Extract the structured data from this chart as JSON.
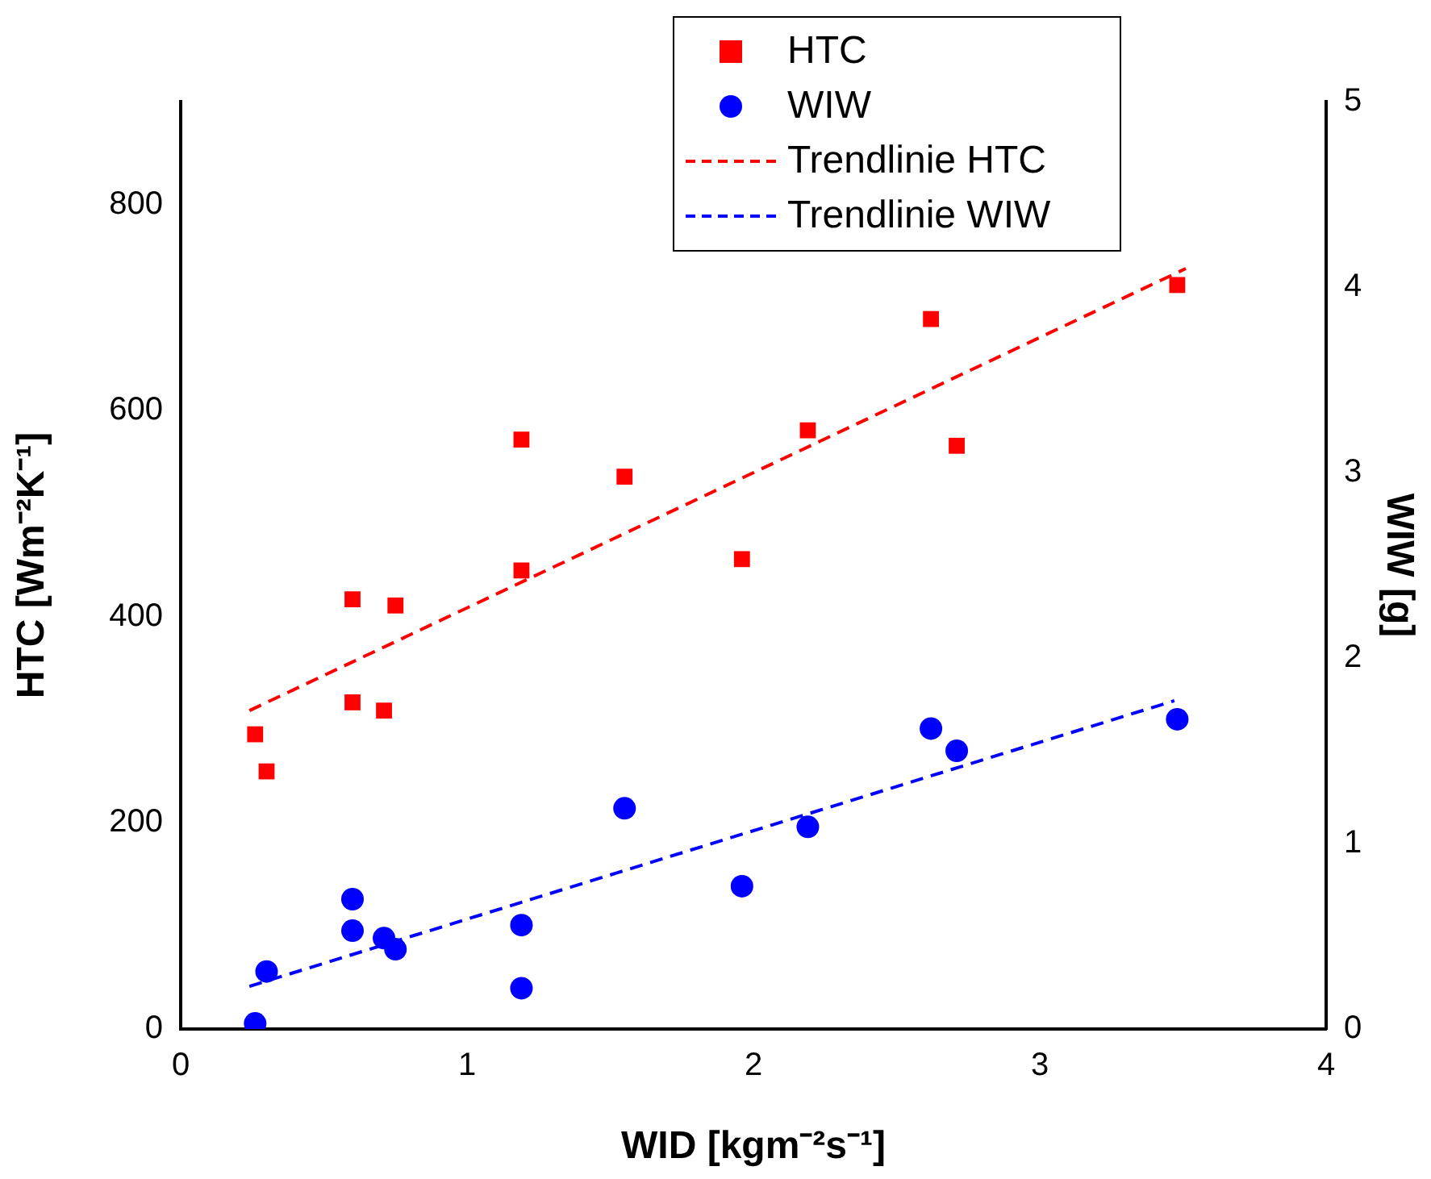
{
  "chart_data": {
    "type": "scatter",
    "xlabel": "WID [kgm⁻²s⁻¹]",
    "ylabel": "HTC [Wm⁻²K⁻¹]",
    "y2label": "WIW [g]",
    "xlim": [
      0,
      4
    ],
    "xticks": [
      0,
      1,
      2,
      3,
      4
    ],
    "ylim": [
      0,
      900
    ],
    "yticks": [
      0,
      200,
      400,
      600,
      800
    ],
    "y2lim": [
      0,
      5
    ],
    "y2ticks": [
      0,
      1,
      2,
      3,
      4,
      5
    ],
    "legend": "top",
    "grid": false,
    "series": [
      {
        "name": "HTC",
        "marker": "square",
        "color": "#ff0000",
        "x": [
          0.26,
          0.3,
          0.6,
          0.6,
          0.71,
          0.75,
          1.19,
          1.19,
          1.55,
          1.96,
          2.19,
          2.62,
          2.71,
          3.48
        ],
        "values": [
          286,
          250,
          417,
          317,
          309,
          411,
          572,
          445,
          536,
          456,
          581,
          689,
          566,
          722
        ]
      },
      {
        "name": "WIW",
        "marker": "circle",
        "axis": "y2",
        "color": "#0000ff",
        "x": [
          0.26,
          0.3,
          0.6,
          0.6,
          0.71,
          0.75,
          1.19,
          1.19,
          1.55,
          1.96,
          2.19,
          2.62,
          2.71,
          3.48
        ],
        "values": [
          0.03,
          0.31,
          0.7,
          0.53,
          0.49,
          0.43,
          0.56,
          0.22,
          1.19,
          0.77,
          1.09,
          1.62,
          1.5,
          1.67
        ]
      },
      {
        "name": "Trendlinie HTC",
        "type": "line",
        "marker": "none",
        "line_style": "dashed",
        "color": "#ff0000",
        "x": [
          0.24,
          3.51
        ],
        "values": [
          309,
          738
        ]
      },
      {
        "name": "Trendlinie WIW",
        "type": "line",
        "marker": "none",
        "line_style": "dashed",
        "axis": "y2",
        "color": "#0000ff",
        "x": [
          0.24,
          3.47
        ],
        "values": [
          0.23,
          1.77
        ]
      }
    ]
  }
}
